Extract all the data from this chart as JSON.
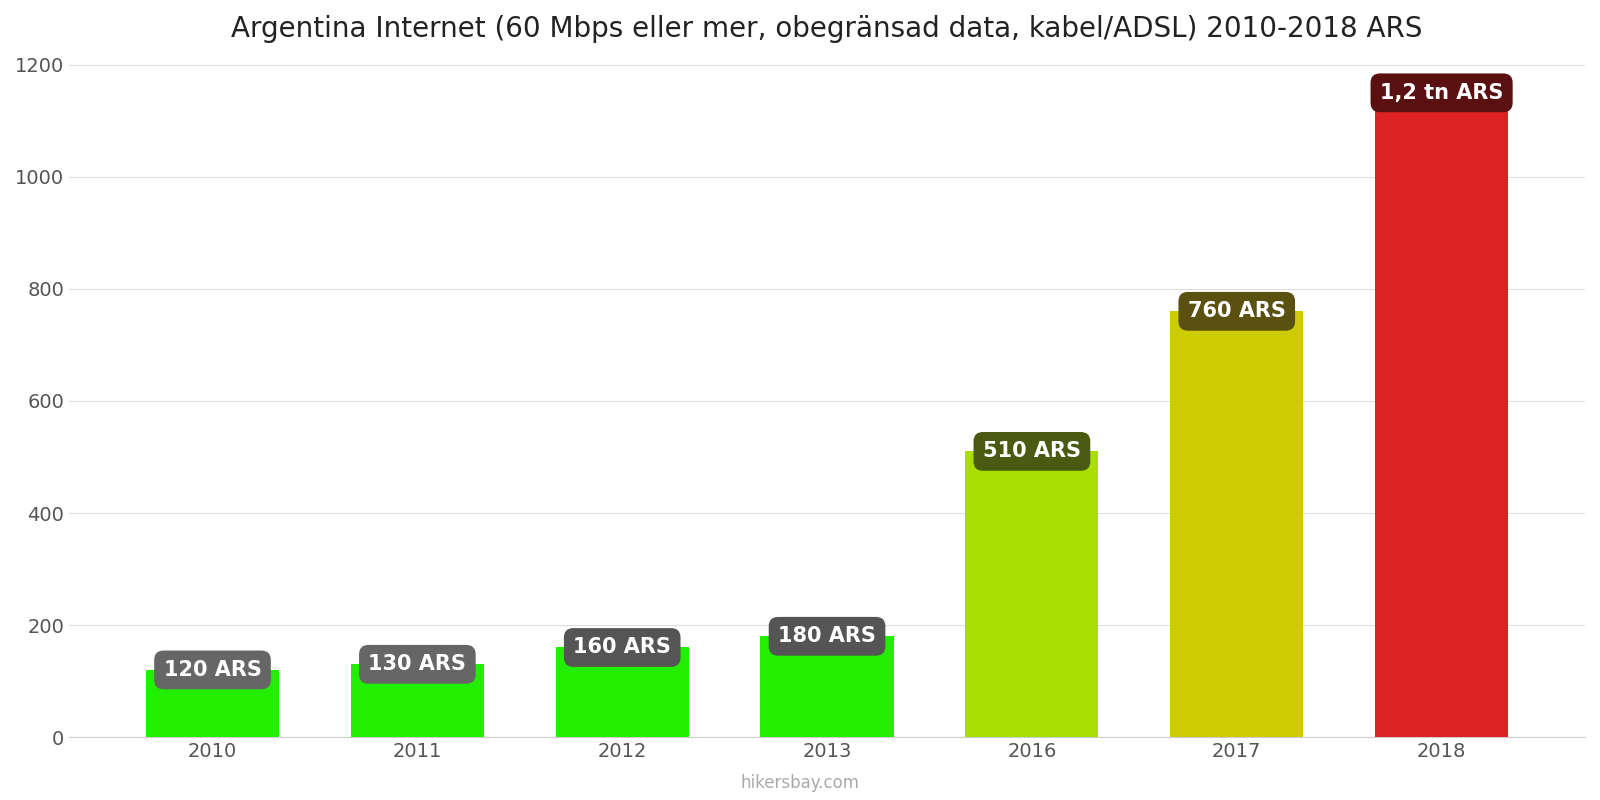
{
  "title": "Argentina Internet (60 Mbps eller mer, obegränsad data, kabel/ADSL) 2010-2018 ARS",
  "years": [
    2010,
    2011,
    2012,
    2013,
    2016,
    2017,
    2018
  ],
  "values": [
    120,
    130,
    160,
    180,
    510,
    760,
    1150
  ],
  "bar_colors": [
    "#22ee00",
    "#22ee00",
    "#22ee00",
    "#22ee00",
    "#aadd00",
    "#cccc00",
    "#dd2222"
  ],
  "label_box_colors": [
    "#666666",
    "#666666",
    "#555555",
    "#555555",
    "#4a5a10",
    "#5a5010",
    "#5a1010"
  ],
  "labels": [
    "120 ARS",
    "130 ARS",
    "160 ARS",
    "180 ARS",
    "510 ARS",
    "760 ARS",
    "1,2 tn ARS"
  ],
  "ylim": [
    0,
    1200
  ],
  "yticks": [
    0,
    200,
    400,
    600,
    800,
    1000,
    1200
  ],
  "background_color": "#ffffff",
  "watermark": "hikersbay.com",
  "title_fontsize": 20,
  "bar_width": 0.65
}
